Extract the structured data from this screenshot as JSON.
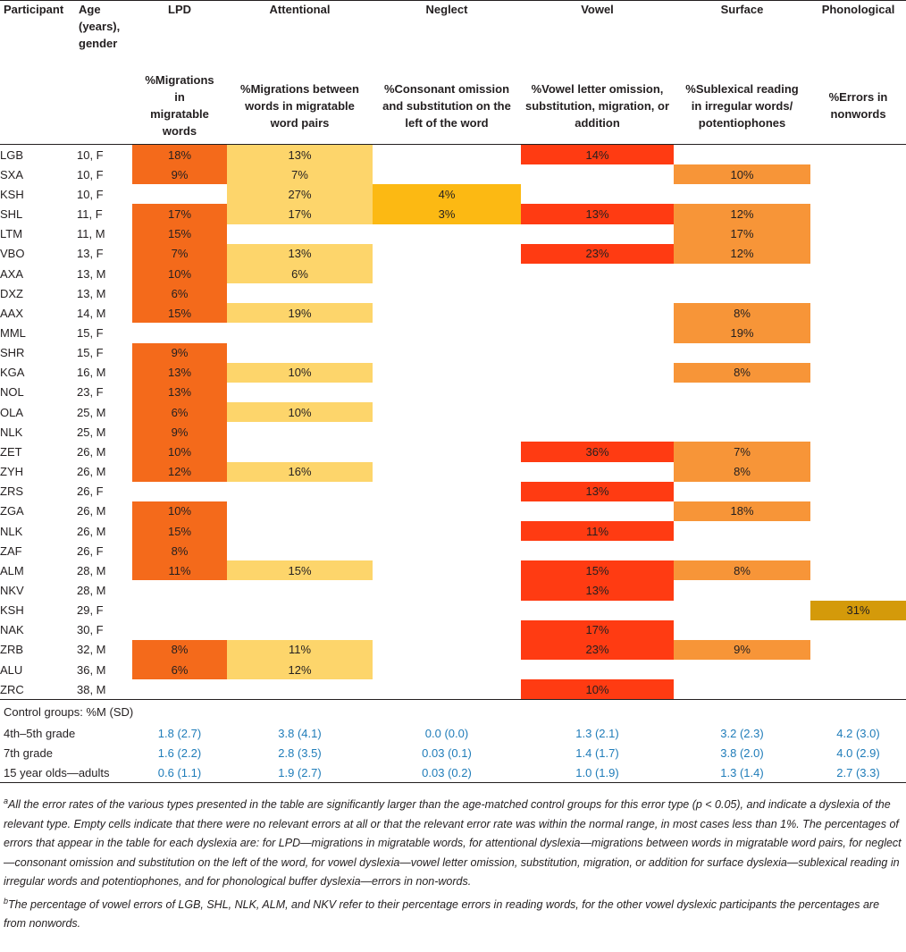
{
  "headers": {
    "participant": "Participant",
    "age": "Age (years), gender",
    "lpd": "LPD",
    "attentional": "Attentional",
    "neglect": "Neglect",
    "vowel": "Vowel",
    "surface": "Surface",
    "phonological": "Phonological"
  },
  "subheaders": {
    "lpd": "%Migrations in migratable words",
    "attentional": "%Migrations between words in migratable word pairs",
    "neglect": "%Consonant omission and substitution on the left of the word",
    "vowel": "%Vowel letter omission, substitution, migration, or addition",
    "surface": "%Sublexical reading in irregular words/ potentiophones",
    "phonological": "%Errors in nonwords"
  },
  "rows": [
    {
      "participant": "LGB",
      "age": "10, F",
      "lpd": "18%",
      "attentional": "13%",
      "neglect": "",
      "vowel": "14%",
      "surface": "",
      "phonological": ""
    },
    {
      "participant": "SXA",
      "age": "10, F",
      "lpd": "9%",
      "attentional": "7%",
      "neglect": "",
      "vowel": "",
      "surface": "10%",
      "phonological": ""
    },
    {
      "participant": "KSH",
      "age": "10, F",
      "lpd": "",
      "attentional": "27%",
      "neglect": "4%",
      "vowel": "",
      "surface": "",
      "phonological": ""
    },
    {
      "participant": "SHL",
      "age": "11, F",
      "lpd": "17%",
      "attentional": "17%",
      "neglect": "3%",
      "vowel": "13%",
      "surface": "12%",
      "phonological": ""
    },
    {
      "participant": "LTM",
      "age": "11, M",
      "lpd": "15%",
      "attentional": "",
      "neglect": "",
      "vowel": "",
      "surface": "17%",
      "phonological": ""
    },
    {
      "participant": "VBO",
      "age": "13, F",
      "lpd": "7%",
      "attentional": "13%",
      "neglect": "",
      "vowel": "23%",
      "surface": "12%",
      "phonological": ""
    },
    {
      "participant": "AXA",
      "age": "13, M",
      "lpd": "10%",
      "attentional": "6%",
      "neglect": "",
      "vowel": "",
      "surface": "",
      "phonological": ""
    },
    {
      "participant": "DXZ",
      "age": "13, M",
      "lpd": "6%",
      "attentional": "",
      "neglect": "",
      "vowel": "",
      "surface": "",
      "phonological": ""
    },
    {
      "participant": "AAX",
      "age": "14, M",
      "lpd": "15%",
      "attentional": "19%",
      "neglect": "",
      "vowel": "",
      "surface": "8%",
      "phonological": ""
    },
    {
      "participant": "MML",
      "age": "15, F",
      "lpd": "",
      "attentional": "",
      "neglect": "",
      "vowel": "",
      "surface": "19%",
      "phonological": ""
    },
    {
      "participant": "SHR",
      "age": "15, F",
      "lpd": "9%",
      "attentional": "",
      "neglect": "",
      "vowel": "",
      "surface": "",
      "phonological": ""
    },
    {
      "participant": "KGA",
      "age": "16, M",
      "lpd": "13%",
      "attentional": "10%",
      "neglect": "",
      "vowel": "",
      "surface": "8%",
      "phonological": ""
    },
    {
      "participant": "NOL",
      "age": "23, F",
      "lpd": "13%",
      "attentional": "",
      "neglect": "",
      "vowel": "",
      "surface": "",
      "phonological": ""
    },
    {
      "participant": "OLA",
      "age": "25, M",
      "lpd": "6%",
      "attentional": "10%",
      "neglect": "",
      "vowel": "",
      "surface": "",
      "phonological": ""
    },
    {
      "participant": "NLK",
      "age": "25, M",
      "lpd": "9%",
      "attentional": "",
      "neglect": "",
      "vowel": "",
      "surface": "",
      "phonological": ""
    },
    {
      "participant": "ZET",
      "age": "26, M",
      "lpd": "10%",
      "attentional": "",
      "neglect": "",
      "vowel": "36%",
      "surface": "7%",
      "phonological": ""
    },
    {
      "participant": "ZYH",
      "age": "26, M",
      "lpd": "12%",
      "attentional": "16%",
      "neglect": "",
      "vowel": "",
      "surface": "8%",
      "phonological": ""
    },
    {
      "participant": "ZRS",
      "age": "26, F",
      "lpd": "",
      "attentional": "",
      "neglect": "",
      "vowel": "13%",
      "surface": "",
      "phonological": ""
    },
    {
      "participant": "ZGA",
      "age": "26, M",
      "lpd": "10%",
      "attentional": "",
      "neglect": "",
      "vowel": "",
      "surface": "18%",
      "phonological": ""
    },
    {
      "participant": "NLK",
      "age": "26, M",
      "lpd": "15%",
      "attentional": "",
      "neglect": "",
      "vowel": "11%",
      "surface": "",
      "phonological": ""
    },
    {
      "participant": "ZAF",
      "age": "26, F",
      "lpd": "8%",
      "attentional": "",
      "neglect": "",
      "vowel": "",
      "surface": "",
      "phonological": ""
    },
    {
      "participant": "ALM",
      "age": "28, M",
      "lpd": "11%",
      "attentional": "15%",
      "neglect": "",
      "vowel": "15%",
      "surface": "8%",
      "phonological": ""
    },
    {
      "participant": "NKV",
      "age": "28, M",
      "lpd": "",
      "attentional": "",
      "neglect": "",
      "vowel": "13%",
      "surface": "",
      "phonological": ""
    },
    {
      "participant": "KSH",
      "age": "29, F",
      "lpd": "",
      "attentional": "",
      "neglect": "",
      "vowel": "",
      "surface": "",
      "phonological": "31%"
    },
    {
      "participant": "NAK",
      "age": "30, F",
      "lpd": "",
      "attentional": "",
      "neglect": "",
      "vowel": "17%",
      "surface": "",
      "phonological": ""
    },
    {
      "participant": "ZRB",
      "age": "32, M",
      "lpd": "8%",
      "attentional": "11%",
      "neglect": "",
      "vowel": "23%",
      "surface": "9%",
      "phonological": ""
    },
    {
      "participant": "ALU",
      "age": "36, M",
      "lpd": "6%",
      "attentional": "12%",
      "neglect": "",
      "vowel": "",
      "surface": "",
      "phonological": ""
    },
    {
      "participant": "ZRC",
      "age": "38, M",
      "lpd": "",
      "attentional": "",
      "neglect": "",
      "vowel": "10%",
      "surface": "",
      "phonological": ""
    }
  ],
  "control_title": "Control groups: %M (SD)",
  "controls": [
    {
      "group": "4th–5th grade",
      "lpd": "1.8 (2.7)",
      "attentional": "3.8 (4.1)",
      "neglect": "0.0 (0.0)",
      "vowel": "1.3 (2.1)",
      "surface": "3.2 (2.3)",
      "phonological": "4.2 (3.0)"
    },
    {
      "group": "7th grade",
      "lpd": "1.6 (2.2)",
      "attentional": "2.8 (3.5)",
      "neglect": "0.03 (0.1)",
      "vowel": "1.4 (1.7)",
      "surface": "3.8 (2.0)",
      "phonological": "4.0 (2.9)"
    },
    {
      "group": "15 year olds—adults",
      "lpd": "0.6 (1.1)",
      "attentional": "1.9 (2.7)",
      "neglect": "0.03 (0.2)",
      "vowel": "1.0 (1.9)",
      "surface": "1.3 (1.4)",
      "phonological": "2.7 (3.3)"
    }
  ],
  "footnotes": {
    "a_marker": "a",
    "a_text": "All the error rates of the various types presented in the table are significantly larger than the age-matched control groups for this error type (p < 0.05), and indicate a dyslexia of the relevant type. Empty cells indicate that there were no relevant errors at all or that the relevant error rate was within the normal range, in most cases less than 1%. The percentages of errors that appear in the table for each dyslexia are: for LPD—migrations in migratable words, for attentional dyslexia—migrations between words in migratable word pairs, for neglect—consonant omission and substitution on the left of the word, for vowel dyslexia—vowel letter omission, substitution, migration, or addition for surface dyslexia—sublexical reading in irregular words and potentiophones, and for phonological buffer dyslexia—errors in non-words.",
    "b_marker": "b",
    "b_text": "The percentage of vowel errors of LGB, SHL, NLK, ALM, and NKV refer to their percentage errors in reading words, for the other vowel dyslexic participants the percentages are from nonwords."
  },
  "colors": {
    "lpd": "#f46a1b",
    "attentional": "#fdd56b",
    "neglect": "#fcb913",
    "vowel": "#ff3b12",
    "surface": "#f79538",
    "phonological": "#d49a0a",
    "control_values": "#1f7cb9"
  }
}
